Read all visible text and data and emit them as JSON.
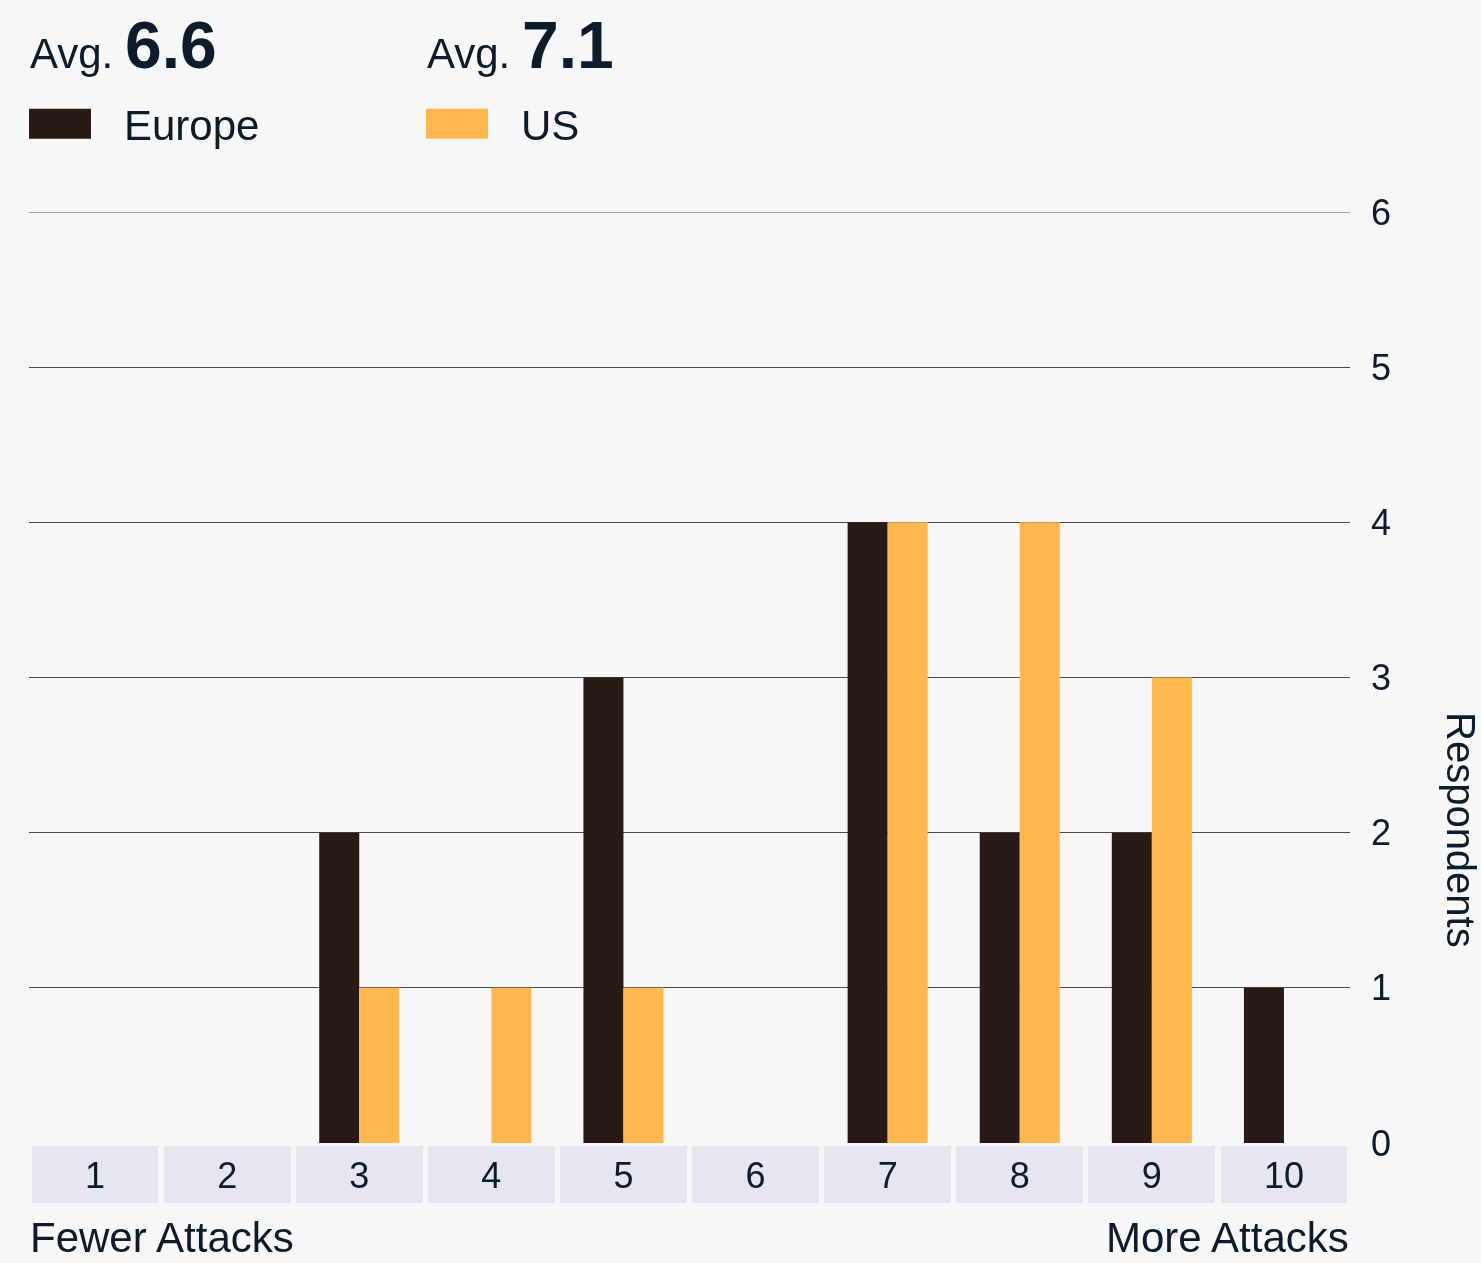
{
  "chart_data": {
    "type": "bar",
    "categories": [
      "1",
      "2",
      "3",
      "4",
      "5",
      "6",
      "7",
      "8",
      "9",
      "10"
    ],
    "series": [
      {
        "name": "Europe",
        "color": "#2a1a17",
        "values": [
          0,
          0,
          2,
          0,
          3,
          0,
          4,
          2,
          2,
          1
        ]
      },
      {
        "name": "US",
        "color": "#ffb84f",
        "values": [
          0,
          0,
          1,
          1,
          1,
          0,
          4,
          4,
          3,
          0
        ]
      }
    ],
    "ylabel": "Respondents",
    "annotations": [
      "Avg. 6.6",
      "Avg. 7.1",
      "Fewer Attacks",
      "More Attacks"
    ],
    "ylim": [
      0,
      6
    ],
    "yticks": [
      0,
      1,
      2,
      3,
      4,
      5,
      6
    ],
    "grid": "y",
    "legend": "top left"
  }
}
